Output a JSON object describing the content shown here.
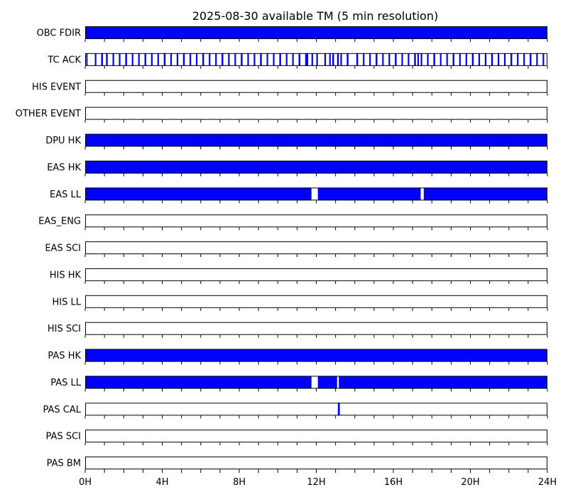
{
  "chart_data": {
    "type": "timeline",
    "title": "2025-08-30 available TM (5 min resolution)",
    "x_unit": "hours",
    "xlim": [
      0,
      24
    ],
    "x_ticks": [
      0,
      4,
      8,
      12,
      16,
      20,
      24
    ],
    "x_tick_labels": [
      "0H",
      "4H",
      "8H",
      "12H",
      "16H",
      "20H",
      "24H"
    ],
    "minor_tick_step_hours": 1,
    "available_color": "#0000ff",
    "rows": [
      {
        "label": "OBC FDIR",
        "intervals": [
          [
            0,
            24
          ]
        ]
      },
      {
        "label": "TC ACK",
        "intervals": [
          [
            0.05,
            0.12
          ],
          [
            0.5,
            0.58
          ],
          [
            0.83,
            0.92
          ],
          [
            1.08,
            1.17
          ],
          [
            1.42,
            1.5
          ],
          [
            1.75,
            1.83
          ],
          [
            2.08,
            2.17
          ],
          [
            2.42,
            2.5
          ],
          [
            2.75,
            2.83
          ],
          [
            3.08,
            3.17
          ],
          [
            3.42,
            3.5
          ],
          [
            3.75,
            3.83
          ],
          [
            4.08,
            4.17
          ],
          [
            4.42,
            4.5
          ],
          [
            4.75,
            4.83
          ],
          [
            5.08,
            5.17
          ],
          [
            5.42,
            5.5
          ],
          [
            5.75,
            5.83
          ],
          [
            6.08,
            6.17
          ],
          [
            6.42,
            6.5
          ],
          [
            6.75,
            6.83
          ],
          [
            7.08,
            7.17
          ],
          [
            7.42,
            7.5
          ],
          [
            7.75,
            7.83
          ],
          [
            8.08,
            8.17
          ],
          [
            8.42,
            8.5
          ],
          [
            8.75,
            8.83
          ],
          [
            9.08,
            9.17
          ],
          [
            9.42,
            9.5
          ],
          [
            9.75,
            9.83
          ],
          [
            10.08,
            10.17
          ],
          [
            10.42,
            10.5
          ],
          [
            10.75,
            10.83
          ],
          [
            11.08,
            11.17
          ],
          [
            11.42,
            11.58
          ],
          [
            11.75,
            11.83
          ],
          [
            12.0,
            12.08
          ],
          [
            12.42,
            12.5
          ],
          [
            12.67,
            12.75
          ],
          [
            12.83,
            12.92
          ],
          [
            13.08,
            13.17
          ],
          [
            13.25,
            13.33
          ],
          [
            13.58,
            13.67
          ],
          [
            14.08,
            14.17
          ],
          [
            14.42,
            14.5
          ],
          [
            14.75,
            14.83
          ],
          [
            15.08,
            15.17
          ],
          [
            15.42,
            15.5
          ],
          [
            15.75,
            15.83
          ],
          [
            16.08,
            16.17
          ],
          [
            16.42,
            16.5
          ],
          [
            16.75,
            16.83
          ],
          [
            17.08,
            17.17
          ],
          [
            17.25,
            17.33
          ],
          [
            17.42,
            17.5
          ],
          [
            17.75,
            17.83
          ],
          [
            18.08,
            18.17
          ],
          [
            18.42,
            18.5
          ],
          [
            18.75,
            18.83
          ],
          [
            19.08,
            19.17
          ],
          [
            19.42,
            19.5
          ],
          [
            19.75,
            19.83
          ],
          [
            20.08,
            20.17
          ],
          [
            20.42,
            20.5
          ],
          [
            20.75,
            20.83
          ],
          [
            21.08,
            21.17
          ],
          [
            21.42,
            21.5
          ],
          [
            21.75,
            21.83
          ],
          [
            22.08,
            22.17
          ],
          [
            22.42,
            22.5
          ],
          [
            22.75,
            22.83
          ],
          [
            23.08,
            23.17
          ],
          [
            23.42,
            23.5
          ],
          [
            23.75,
            23.83
          ]
        ]
      },
      {
        "label": "HIS EVENT",
        "intervals": []
      },
      {
        "label": "OTHER EVENT",
        "intervals": []
      },
      {
        "label": "DPU HK",
        "intervals": [
          [
            0,
            24
          ]
        ]
      },
      {
        "label": "EAS HK",
        "intervals": [
          [
            0,
            24
          ]
        ]
      },
      {
        "label": "EAS LL",
        "intervals": [
          [
            0,
            11.75
          ],
          [
            12.08,
            17.42
          ],
          [
            17.58,
            24
          ]
        ]
      },
      {
        "label": "EAS_ENG",
        "intervals": []
      },
      {
        "label": "EAS SCI",
        "intervals": []
      },
      {
        "label": "HIS HK",
        "intervals": []
      },
      {
        "label": "HIS LL",
        "intervals": []
      },
      {
        "label": "HIS SCI",
        "intervals": []
      },
      {
        "label": "PAS HK",
        "intervals": [
          [
            0,
            24
          ]
        ]
      },
      {
        "label": "PAS LL",
        "intervals": [
          [
            0,
            11.75
          ],
          [
            12.08,
            13.08
          ],
          [
            13.17,
            24
          ]
        ]
      },
      {
        "label": "PAS CAL",
        "intervals": [
          [
            13.12,
            13.22
          ]
        ]
      },
      {
        "label": "PAS SCI",
        "intervals": []
      },
      {
        "label": "PAS BM",
        "intervals": []
      }
    ]
  }
}
